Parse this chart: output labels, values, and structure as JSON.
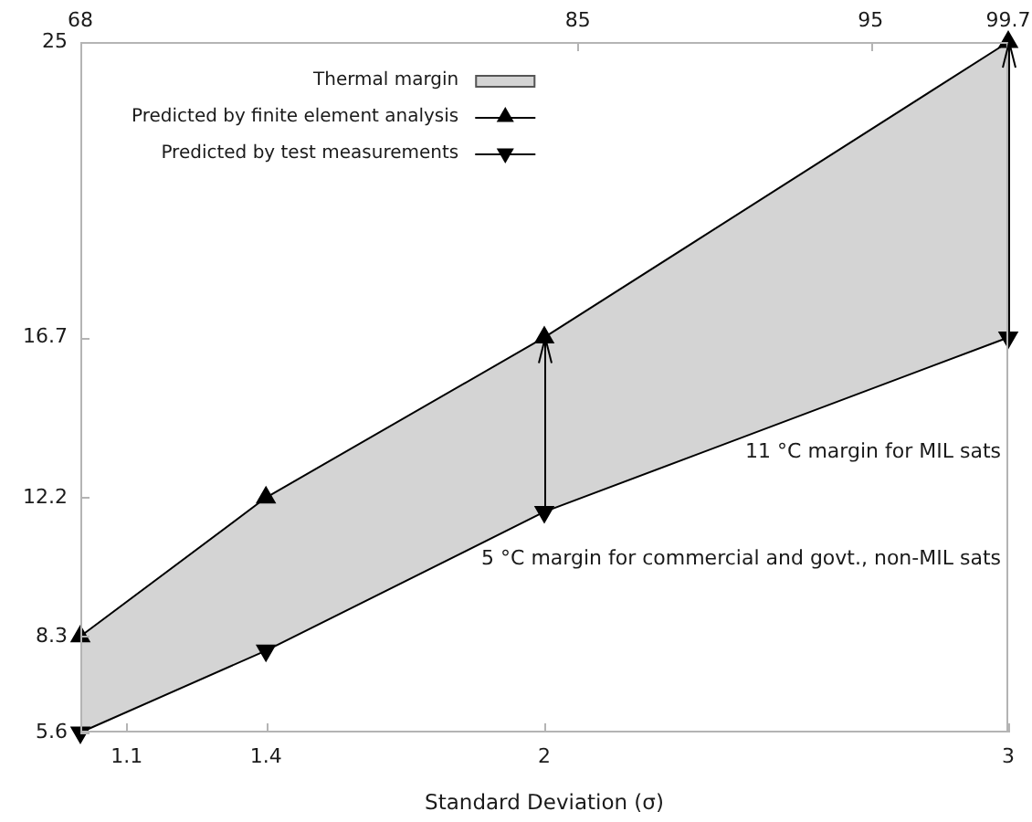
{
  "chart_data": {
    "type": "line",
    "xlabel": "Standard Deviation (σ)",
    "x": [
      1,
      1.4,
      2,
      3
    ],
    "series": [
      {
        "name": "Thermal margin",
        "type": "area",
        "color": "#d4d4d4",
        "values": [
          null,
          null,
          null,
          null
        ],
        "lower": [
          5.6,
          7.9,
          11.8,
          16.7
        ],
        "upper": [
          8.3,
          12.2,
          16.7,
          25
        ]
      },
      {
        "name": "Predicted by finite element analysis",
        "type": "line",
        "color": "#000000",
        "marker": "triangle",
        "values": [
          8.3,
          12.2,
          16.7,
          25
        ]
      },
      {
        "name": "Predicted by test measurements",
        "type": "line",
        "color": "#000000",
        "marker": "triangle-down",
        "values": [
          5.6,
          7.9,
          11.8,
          16.7
        ]
      }
    ],
    "xlim": [
      1,
      3
    ],
    "xticks": [
      1.1,
      1.4,
      2,
      3
    ],
    "x2lim": [
      68,
      99.7
    ],
    "x2ticks": [
      68,
      85,
      95,
      99.7
    ],
    "ylim": [
      5.6,
      25
    ],
    "yticks": [
      5.6,
      8.3,
      12.2,
      16.7,
      25
    ],
    "annotations": [
      "11 °C margin for MIL sats",
      "5 °C margin for commercial and govt., non-MIL sats"
    ],
    "legend": "top left"
  }
}
